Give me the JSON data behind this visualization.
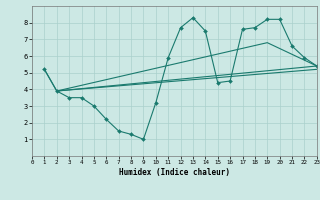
{
  "xlabel": "Humidex (Indice chaleur)",
  "xlim": [
    0,
    23
  ],
  "ylim": [
    0,
    9
  ],
  "xticks": [
    0,
    1,
    2,
    3,
    4,
    5,
    6,
    7,
    8,
    9,
    10,
    11,
    12,
    13,
    14,
    15,
    16,
    17,
    18,
    19,
    20,
    21,
    22,
    23
  ],
  "yticks": [
    1,
    2,
    3,
    4,
    5,
    6,
    7,
    8
  ],
  "background_color": "#cce8e4",
  "grid_color": "#aad0cc",
  "line_color": "#1a7a6e",
  "line1_x": [
    1,
    2,
    3,
    4,
    5,
    6,
    7,
    8,
    9,
    10,
    11,
    12,
    13,
    14,
    15,
    16,
    17,
    18,
    19,
    20,
    21,
    22,
    23
  ],
  "line1_y": [
    5.2,
    3.9,
    3.5,
    3.5,
    3.0,
    2.2,
    1.5,
    1.3,
    1.0,
    3.2,
    5.9,
    7.7,
    8.3,
    7.5,
    4.4,
    4.5,
    7.6,
    7.7,
    8.2,
    8.2,
    6.6,
    5.9,
    5.4
  ],
  "line2_x": [
    1,
    2,
    23
  ],
  "line2_y": [
    5.2,
    3.9,
    5.4
  ],
  "line3_x": [
    2,
    23
  ],
  "line3_y": [
    3.9,
    5.2
  ],
  "line4_x": [
    2,
    19,
    23
  ],
  "line4_y": [
    3.9,
    6.8,
    5.4
  ]
}
